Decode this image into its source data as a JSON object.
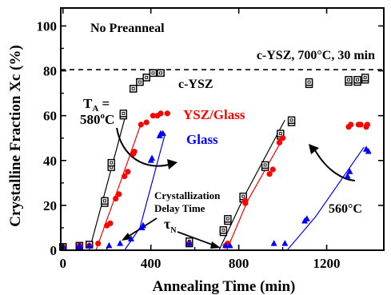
{
  "chart_data": {
    "type": "scatter",
    "xlabel": "Annealing Time (min)",
    "ylabel": "Crystalline Fraction Xc (%)",
    "xlim": [
      -10,
      1460
    ],
    "ylim": [
      0,
      108
    ],
    "xticks": [
      0,
      400,
      800,
      1200
    ],
    "yticks": [
      0,
      20,
      40,
      60,
      80,
      100
    ],
    "grid": false,
    "reference_line": {
      "y": 80.5,
      "label": "c-YSZ, 700°C, 30 min"
    },
    "series": [
      {
        "name": "c-YSZ",
        "marker": "open-square",
        "color": "#000000",
        "points": [
          [
            0,
            1.5
          ],
          [
            0,
            1.5
          ],
          [
            75,
            2
          ],
          [
            75,
            2
          ],
          [
            120,
            2.5
          ],
          [
            120,
            2.5
          ],
          [
            190,
            21
          ],
          [
            190,
            22
          ],
          [
            220,
            37
          ],
          [
            220,
            39
          ],
          [
            275,
            60
          ],
          [
            275,
            61
          ],
          [
            320,
            72
          ],
          [
            320,
            72
          ],
          [
            350,
            75
          ],
          [
            350,
            75
          ],
          [
            380,
            77
          ],
          [
            380,
            77
          ],
          [
            410,
            79
          ],
          [
            410,
            79
          ],
          [
            445,
            79
          ],
          [
            445,
            79
          ],
          [
            575,
            3
          ],
          [
            575,
            4
          ],
          [
            730,
            8
          ],
          [
            730,
            9
          ],
          [
            750,
            13
          ],
          [
            750,
            14
          ],
          [
            820,
            23
          ],
          [
            820,
            24
          ],
          [
            920,
            37
          ],
          [
            920,
            38
          ],
          [
            990,
            51
          ],
          [
            990,
            52
          ],
          [
            1040,
            57
          ],
          [
            1040,
            58
          ],
          [
            1120,
            74
          ],
          [
            1120,
            75
          ],
          [
            1300,
            75
          ],
          [
            1300,
            76
          ],
          [
            1340,
            75
          ],
          [
            1340,
            76
          ],
          [
            1375,
            76
          ],
          [
            1375,
            77
          ]
        ]
      },
      {
        "name": "YSZ/Glass",
        "marker": "filled-circle",
        "color": "#ff0000",
        "points": [
          [
            0,
            1.5
          ],
          [
            75,
            2
          ],
          [
            75,
            2
          ],
          [
            120,
            2
          ],
          [
            160,
            3
          ],
          [
            200,
            11
          ],
          [
            215,
            12
          ],
          [
            240,
            23
          ],
          [
            255,
            25
          ],
          [
            280,
            33
          ],
          [
            295,
            35
          ],
          [
            320,
            43
          ],
          [
            325,
            44
          ],
          [
            355,
            56
          ],
          [
            380,
            57
          ],
          [
            410,
            60
          ],
          [
            430,
            60
          ],
          [
            445,
            61
          ],
          [
            475,
            61
          ],
          [
            575,
            3
          ],
          [
            740,
            2
          ],
          [
            750,
            3
          ],
          [
            830,
            21
          ],
          [
            830,
            22
          ],
          [
            940,
            34
          ],
          [
            955,
            36
          ],
          [
            985,
            48
          ],
          [
            1000,
            50
          ],
          [
            1300,
            55
          ],
          [
            1310,
            56
          ],
          [
            1345,
            56
          ],
          [
            1355,
            56
          ],
          [
            1380,
            55
          ],
          [
            1385,
            56
          ]
        ]
      },
      {
        "name": "Glass",
        "marker": "filled-triangle",
        "color": "#0000ff",
        "points": [
          [
            0,
            1.5
          ],
          [
            75,
            1.5
          ],
          [
            75,
            2
          ],
          [
            120,
            2
          ],
          [
            210,
            2
          ],
          [
            260,
            3
          ],
          [
            310,
            5
          ],
          [
            360,
            10
          ],
          [
            365,
            11
          ],
          [
            400,
            40
          ],
          [
            405,
            41
          ],
          [
            440,
            51
          ],
          [
            445,
            52
          ],
          [
            455,
            52
          ],
          [
            575,
            3
          ],
          [
            740,
            2
          ],
          [
            760,
            2
          ],
          [
            960,
            3
          ],
          [
            1010,
            3
          ],
          [
            1100,
            13
          ],
          [
            1110,
            14
          ],
          [
            1295,
            33
          ],
          [
            1305,
            35
          ],
          [
            1380,
            45
          ],
          [
            1390,
            44
          ]
        ]
      }
    ],
    "fit_lines": [
      {
        "color": "#000000",
        "points": [
          [
            120,
            0
          ],
          [
            230,
            40
          ],
          [
            290,
            62
          ]
        ]
      },
      {
        "color": "#ff0000",
        "points": [
          [
            150,
            0
          ],
          [
            260,
            30
          ],
          [
            350,
            55
          ]
        ]
      },
      {
        "color": "#0000ff",
        "points": [
          [
            280,
            0
          ],
          [
            350,
            10
          ],
          [
            465,
            52
          ]
        ]
      },
      {
        "color": "#000000",
        "points": [
          [
            710,
            0
          ],
          [
            830,
            25
          ],
          [
            1010,
            58
          ]
        ]
      },
      {
        "color": "#ff0000",
        "points": [
          [
            745,
            0
          ],
          [
            840,
            22
          ],
          [
            990,
            48
          ]
        ]
      },
      {
        "color": "#0000ff",
        "points": [
          [
            1020,
            0
          ],
          [
            1150,
            15
          ],
          [
            1370,
            46
          ]
        ]
      }
    ],
    "annotations": [
      {
        "text": "No Preanneal",
        "x": 80,
        "y": 100
      },
      {
        "text": "c-YSZ",
        "x": 480,
        "y": 67
      },
      {
        "text": "YSZ/Glass",
        "x": 500,
        "y": 58
      },
      {
        "text": "Glass",
        "x": 530,
        "y": 46
      },
      {
        "text": "560°C",
        "x": 1245,
        "y": 7
      },
      {
        "text": "Crystallization",
        "x": 700,
        "y": 24
      },
      {
        "text": "Delay Time",
        "x": 700,
        "y": 17
      }
    ],
    "label_TA": {
      "T": "T",
      "sub": "A",
      "eq": " =",
      "value": "580",
      "deg": "o",
      "unit": "C"
    },
    "label_tau": {
      "symbol": "τ",
      "sub": "N"
    }
  }
}
